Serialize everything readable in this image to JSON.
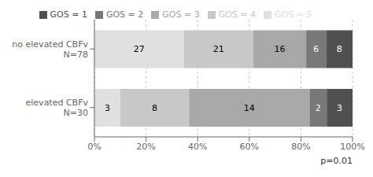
{
  "chart_data": {
    "type": "bar",
    "orientation": "horizontal",
    "stacked": true,
    "grid": true,
    "legend": "top",
    "categories": [
      "no elevated CBFv\nN=78",
      "elevated CBFv\nN=30"
    ],
    "series": [
      {
        "name": "GOS = 5",
        "color": "#e0e0e0",
        "values": [
          34.61538461538461,
          10.0
        ],
        "counts": [
          27,
          3
        ]
      },
      {
        "name": "GOS = 4",
        "color": "#c8c8c8",
        "values": [
          26.923076923076923,
          26.666666666666668
        ],
        "counts": [
          21,
          8
        ]
      },
      {
        "name": "GOS = 3",
        "color": "#a8a8a8",
        "values": [
          20.51282051282051,
          46.666666666666664
        ],
        "counts": [
          16,
          14
        ]
      },
      {
        "name": "GOS = 2",
        "color": "#787878",
        "values": [
          7.6923076923076925,
          6.666666666666667
        ],
        "counts": [
          6,
          2
        ]
      },
      {
        "name": "GOS = 1",
        "color": "#505050",
        "values": [
          10.256410256410255,
          10.0
        ],
        "counts": [
          8,
          3
        ]
      }
    ],
    "xlim": [
      0,
      100
    ],
    "xticks": [
      {
        "value": 0,
        "label": "0%"
      },
      {
        "value": 20,
        "label": "20%"
      },
      {
        "value": 40,
        "label": "40%"
      },
      {
        "value": 60,
        "label": "60%"
      },
      {
        "value": 80,
        "label": "80%"
      },
      {
        "value": 100,
        "label": "100%"
      }
    ],
    "annotations": [
      "p=0.01"
    ]
  }
}
